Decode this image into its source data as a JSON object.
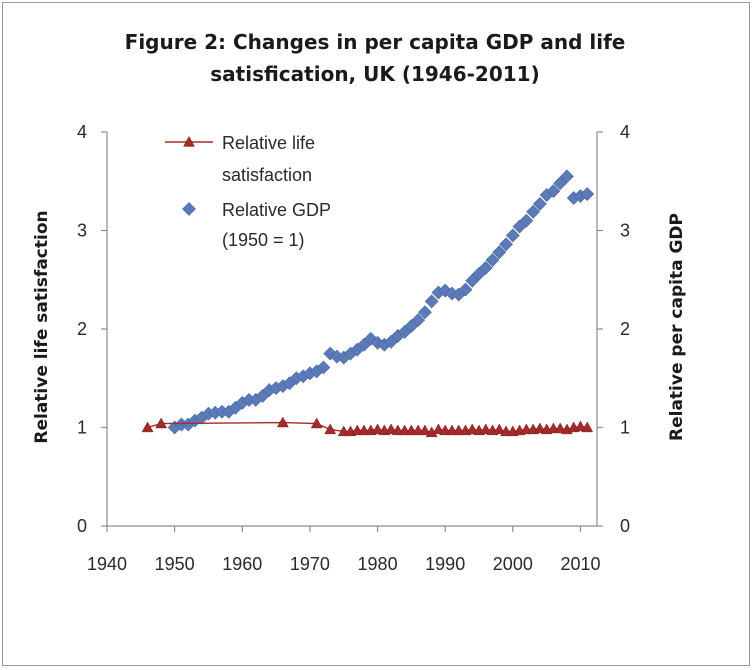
{
  "chart_data": {
    "type": "line",
    "title": [
      "Figure  2: Changes in per capita GDP and life",
      "satisfication, UK (1946-2011)"
    ],
    "ylabel": "Relative life satisfaction",
    "y2label": "Relative per capita GDP",
    "xlim": [
      1940,
      2012
    ],
    "ylim": [
      0,
      4
    ],
    "y2lim": [
      0,
      4
    ],
    "x_ticks": [
      "1940",
      "1950",
      "1960",
      "1970",
      "1980",
      "1990",
      "2000",
      "2010"
    ],
    "y_ticks": [
      "0",
      "1",
      "2",
      "3",
      "4"
    ],
    "y2_ticks": [
      "0",
      "1",
      "2",
      "3",
      "4"
    ],
    "legend": [
      {
        "lines": [
          "Relative life",
          "satisfaction"
        ],
        "marker": "triangle",
        "color": "#a52a2a"
      },
      {
        "lines": [
          "Relative GDP",
          "(1950 = 1)"
        ],
        "marker": "diamond",
        "color": "#5b7bb8"
      }
    ],
    "series": [
      {
        "name": "Relative life satisfaction",
        "marker": "triangle",
        "color": "#a52a2a",
        "line": true,
        "axis": "left",
        "points": [
          [
            1946,
            1.0
          ],
          [
            1948,
            1.04
          ],
          [
            1966,
            1.05
          ],
          [
            1971,
            1.04
          ],
          [
            1973,
            0.98
          ],
          [
            1975,
            0.96
          ],
          [
            1976,
            0.96
          ],
          [
            1977,
            0.97
          ],
          [
            1978,
            0.97
          ],
          [
            1979,
            0.97
          ],
          [
            1980,
            0.98
          ],
          [
            1981,
            0.97
          ],
          [
            1982,
            0.98
          ],
          [
            1983,
            0.97
          ],
          [
            1984,
            0.97
          ],
          [
            1985,
            0.97
          ],
          [
            1986,
            0.97
          ],
          [
            1987,
            0.97
          ],
          [
            1988,
            0.95
          ],
          [
            1989,
            0.98
          ],
          [
            1990,
            0.97
          ],
          [
            1991,
            0.97
          ],
          [
            1992,
            0.97
          ],
          [
            1993,
            0.97
          ],
          [
            1994,
            0.98
          ],
          [
            1995,
            0.97
          ],
          [
            1996,
            0.98
          ],
          [
            1997,
            0.97
          ],
          [
            1998,
            0.98
          ],
          [
            1999,
            0.96
          ],
          [
            2000,
            0.96
          ],
          [
            2001,
            0.97
          ],
          [
            2002,
            0.98
          ],
          [
            2003,
            0.98
          ],
          [
            2004,
            0.99
          ],
          [
            2005,
            0.98
          ],
          [
            2006,
            0.99
          ],
          [
            2007,
            0.99
          ],
          [
            2008,
            0.98
          ],
          [
            2009,
            1.0
          ],
          [
            2010,
            1.01
          ],
          [
            2011,
            1.0
          ]
        ]
      },
      {
        "name": "Relative GDP (1950 = 1)",
        "marker": "diamond",
        "color": "#5b7bb8",
        "line": false,
        "axis": "right",
        "points": [
          [
            1950,
            1.0
          ],
          [
            1951,
            1.03
          ],
          [
            1952,
            1.03
          ],
          [
            1953,
            1.07
          ],
          [
            1954,
            1.1
          ],
          [
            1955,
            1.14
          ],
          [
            1956,
            1.15
          ],
          [
            1957,
            1.16
          ],
          [
            1958,
            1.16
          ],
          [
            1959,
            1.2
          ],
          [
            1960,
            1.25
          ],
          [
            1961,
            1.28
          ],
          [
            1962,
            1.28
          ],
          [
            1963,
            1.32
          ],
          [
            1964,
            1.38
          ],
          [
            1965,
            1.4
          ],
          [
            1966,
            1.42
          ],
          [
            1967,
            1.45
          ],
          [
            1968,
            1.5
          ],
          [
            1969,
            1.52
          ],
          [
            1970,
            1.55
          ],
          [
            1971,
            1.57
          ],
          [
            1972,
            1.61
          ],
          [
            1973,
            1.75
          ],
          [
            1974,
            1.72
          ],
          [
            1975,
            1.71
          ],
          [
            1976,
            1.75
          ],
          [
            1977,
            1.79
          ],
          [
            1978,
            1.84
          ],
          [
            1979,
            1.9
          ],
          [
            1980,
            1.86
          ],
          [
            1981,
            1.84
          ],
          [
            1982,
            1.87
          ],
          [
            1983,
            1.93
          ],
          [
            1984,
            1.97
          ],
          [
            1985,
            2.03
          ],
          [
            1986,
            2.09
          ],
          [
            1987,
            2.17
          ],
          [
            1988,
            2.28
          ],
          [
            1989,
            2.37
          ],
          [
            1990,
            2.39
          ],
          [
            1991,
            2.36
          ],
          [
            1992,
            2.35
          ],
          [
            1993,
            2.4
          ],
          [
            1994,
            2.49
          ],
          [
            1995,
            2.56
          ],
          [
            1996,
            2.62
          ],
          [
            1997,
            2.7
          ],
          [
            1998,
            2.78
          ],
          [
            1999,
            2.86
          ],
          [
            2000,
            2.95
          ],
          [
            2001,
            3.04
          ],
          [
            2002,
            3.1
          ],
          [
            2003,
            3.19
          ],
          [
            2004,
            3.27
          ],
          [
            2005,
            3.36
          ],
          [
            2006,
            3.4
          ],
          [
            2007,
            3.48
          ],
          [
            2008,
            3.55
          ],
          [
            2009,
            3.33
          ],
          [
            2010,
            3.35
          ],
          [
            2011,
            3.37
          ]
        ]
      }
    ]
  }
}
